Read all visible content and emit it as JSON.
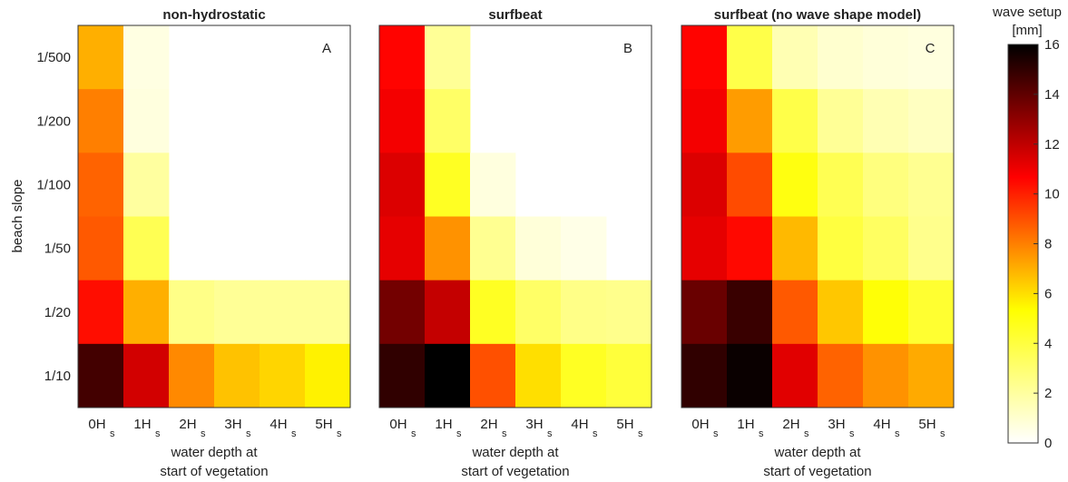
{
  "chart_data": {
    "type": "heatmap",
    "ylabel": "beach slope",
    "y_categories": [
      "1/500",
      "1/200",
      "1/100",
      "1/50",
      "1/20",
      "1/10"
    ],
    "x_categories": [
      {
        "main": "0H",
        "sub": "s"
      },
      {
        "main": "1H",
        "sub": "s"
      },
      {
        "main": "2H",
        "sub": "s"
      },
      {
        "main": "3H",
        "sub": "s"
      },
      {
        "main": "4H",
        "sub": "s"
      },
      {
        "main": "5H",
        "sub": "s"
      }
    ],
    "xlabel_line1": "water depth at",
    "xlabel_line2": "start of vegetation",
    "colorbar": {
      "title_line1": "wave setup",
      "title_line2": "[mm]",
      "min": 0,
      "max": 16,
      "ticks": [
        "0",
        "2",
        "4",
        "6",
        "8",
        "10",
        "12",
        "14",
        "16"
      ],
      "colormap": "hot (reversed)"
    },
    "panels": [
      {
        "title": "non-hydrostatic",
        "letter": "A",
        "values": [
          [
            7.0,
            0.6,
            null,
            null,
            null,
            null
          ],
          [
            8.0,
            0.7,
            null,
            null,
            null,
            null
          ],
          [
            8.6,
            2.0,
            null,
            null,
            null,
            null
          ],
          [
            8.8,
            3.6,
            null,
            null,
            null,
            null
          ],
          [
            10.4,
            7.0,
            2.5,
            2.2,
            2.2,
            2.2
          ],
          [
            14.6,
            11.6,
            7.8,
            6.6,
            6.2,
            5.6
          ]
        ]
      },
      {
        "title": "surfbeat",
        "letter": "B",
        "values": [
          [
            10.6,
            2.2,
            null,
            null,
            null,
            null
          ],
          [
            10.9,
            3.2,
            null,
            null,
            null,
            null
          ],
          [
            11.4,
            4.6,
            0.7,
            null,
            null,
            null
          ],
          [
            11.2,
            7.6,
            2.3,
            0.8,
            0.5,
            null
          ],
          [
            13.6,
            11.9,
            4.6,
            3.2,
            2.5,
            2.4
          ],
          [
            15.0,
            16.0,
            9.0,
            6.0,
            4.6,
            4.1
          ]
        ]
      },
      {
        "title": "surfbeat (no wave shape model)",
        "letter": "C",
        "values": [
          [
            10.6,
            3.8,
            1.6,
            1.0,
            0.8,
            0.7
          ],
          [
            10.9,
            7.4,
            3.8,
            2.2,
            1.6,
            1.3
          ],
          [
            11.4,
            9.1,
            5.0,
            3.6,
            2.7,
            2.3
          ],
          [
            11.2,
            10.5,
            6.8,
            4.0,
            3.3,
            2.4
          ],
          [
            13.8,
            14.8,
            8.8,
            6.5,
            5.2,
            4.3
          ],
          [
            15.0,
            15.8,
            11.3,
            8.6,
            7.6,
            7.1
          ]
        ]
      }
    ]
  }
}
